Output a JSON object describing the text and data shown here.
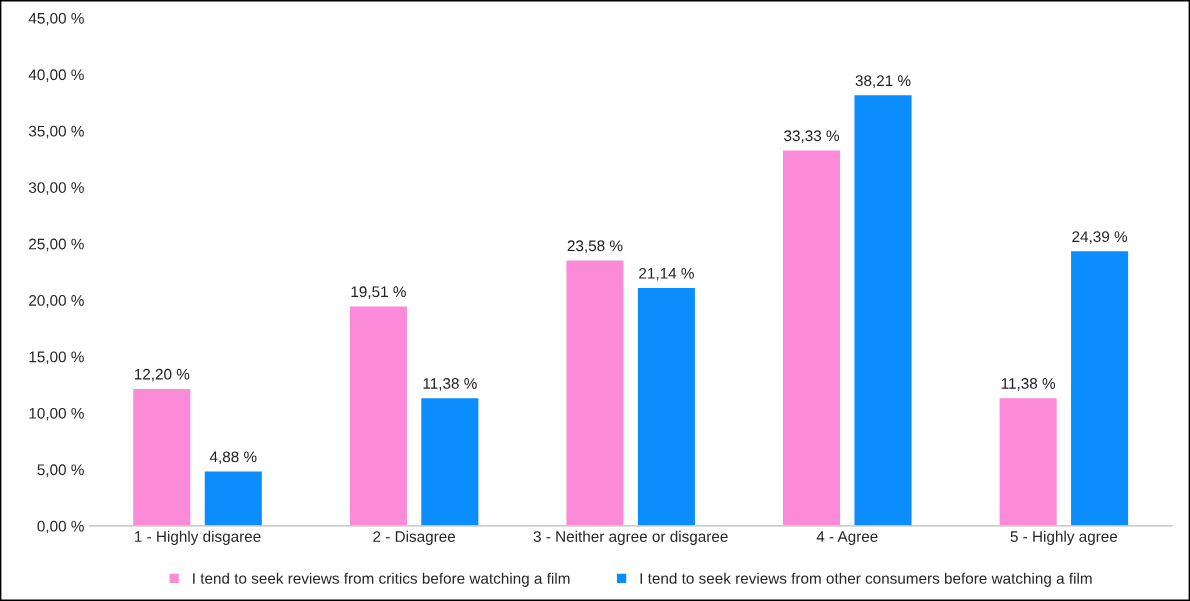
{
  "chart_data": {
    "type": "bar",
    "categories": [
      "1 - Highly disgaree",
      "2 - Disagree",
      "3 - Neither agree or disgaree",
      "4 - Agree",
      "5 - Highly agree"
    ],
    "series": [
      {
        "name": "I tend to seek reviews from critics before watching a film",
        "color": "#fb8ad9",
        "values": [
          12.2,
          19.51,
          23.58,
          33.33,
          11.38
        ],
        "value_labels": [
          "12,20 %",
          "19,51 %",
          "23,58 %",
          "33,33 %",
          "11,38 %"
        ]
      },
      {
        "name": "I tend to seek reviews from other consumers before watching a film",
        "color": "#0b8dfe",
        "values": [
          4.88,
          11.38,
          21.14,
          38.21,
          24.39
        ],
        "value_labels": [
          "4,88 %",
          "11,38 %",
          "21,14 %",
          "38,21 %",
          "24,39 %"
        ]
      }
    ],
    "ylim": [
      0,
      45
    ],
    "yticks": [
      {
        "value": 0,
        "label": "0,00 %"
      },
      {
        "value": 5,
        "label": "5,00 %"
      },
      {
        "value": 10,
        "label": "10,00 %"
      },
      {
        "value": 15,
        "label": "15,00 %"
      },
      {
        "value": 20,
        "label": "20,00 %"
      },
      {
        "value": 25,
        "label": "25,00 %"
      },
      {
        "value": 30,
        "label": "30,00 %"
      },
      {
        "value": 35,
        "label": "35,00 %"
      },
      {
        "value": 40,
        "label": "40,00 %"
      },
      {
        "value": 45,
        "label": "45,00 %"
      }
    ],
    "grid": false,
    "legend": "bottom"
  }
}
